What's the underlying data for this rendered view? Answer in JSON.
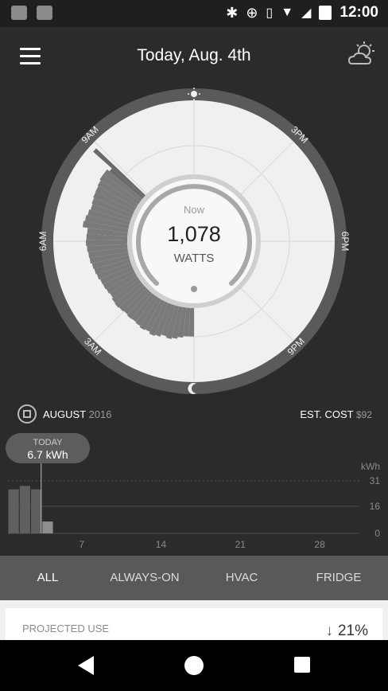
{
  "status_bar": {
    "time": "12:00"
  },
  "header": {
    "title": "Today, Aug. 4th"
  },
  "dial": {
    "now_label": "Now",
    "value": "1,078",
    "unit": "WATTS",
    "hour_labels": {
      "h9am": "9AM",
      "h3pm": "3PM",
      "h6am": "6AM",
      "h6pm": "6PM",
      "h3am": "3AM",
      "h9pm": "9PM"
    },
    "usage_bars": [
      0.62,
      0.62,
      0.66,
      0.7,
      0.73,
      0.7,
      0.75,
      0.78,
      0.74,
      0.76,
      0.73,
      0.71,
      0.72,
      0.7,
      0.72,
      0.74,
      0.73,
      0.7,
      0.72,
      0.74,
      0.75,
      0.78,
      0.8,
      0.82,
      0.85,
      0.86,
      0.88,
      0.9,
      0.89,
      0.88,
      0.99,
      0.96,
      0.93,
      0.9,
      0.92,
      0.94,
      0.95,
      0.97,
      1.0,
      1.0
    ],
    "spike_bars": [
      0.58,
      0.92
    ]
  },
  "month_row": {
    "month": "AUGUST",
    "year": "2016",
    "cost_label": "EST. COST",
    "cost_value": "$92"
  },
  "bubble": {
    "label": "TODAY",
    "value": "6.7 kWh"
  },
  "chart_data": {
    "type": "bar",
    "x": [
      1,
      2,
      3,
      4
    ],
    "values": [
      26,
      28,
      26,
      7
    ],
    "xticks": [
      "7",
      "14",
      "21",
      "28"
    ],
    "xtick_values": [
      7,
      14,
      21,
      28
    ],
    "yticks": [
      "31",
      "16",
      "0"
    ],
    "ytick_values": [
      31,
      16,
      0
    ],
    "unit": "kWh",
    "xlim": [
      0.5,
      31.5
    ],
    "ylim": [
      0,
      31
    ],
    "highlight_index": 3
  },
  "tabs": [
    "ALL",
    "ALWAYS-ON",
    "HVAC",
    "FRIDGE"
  ],
  "card": {
    "label": "PROJECTED USE",
    "percent": "21%",
    "arrow": "↓"
  }
}
